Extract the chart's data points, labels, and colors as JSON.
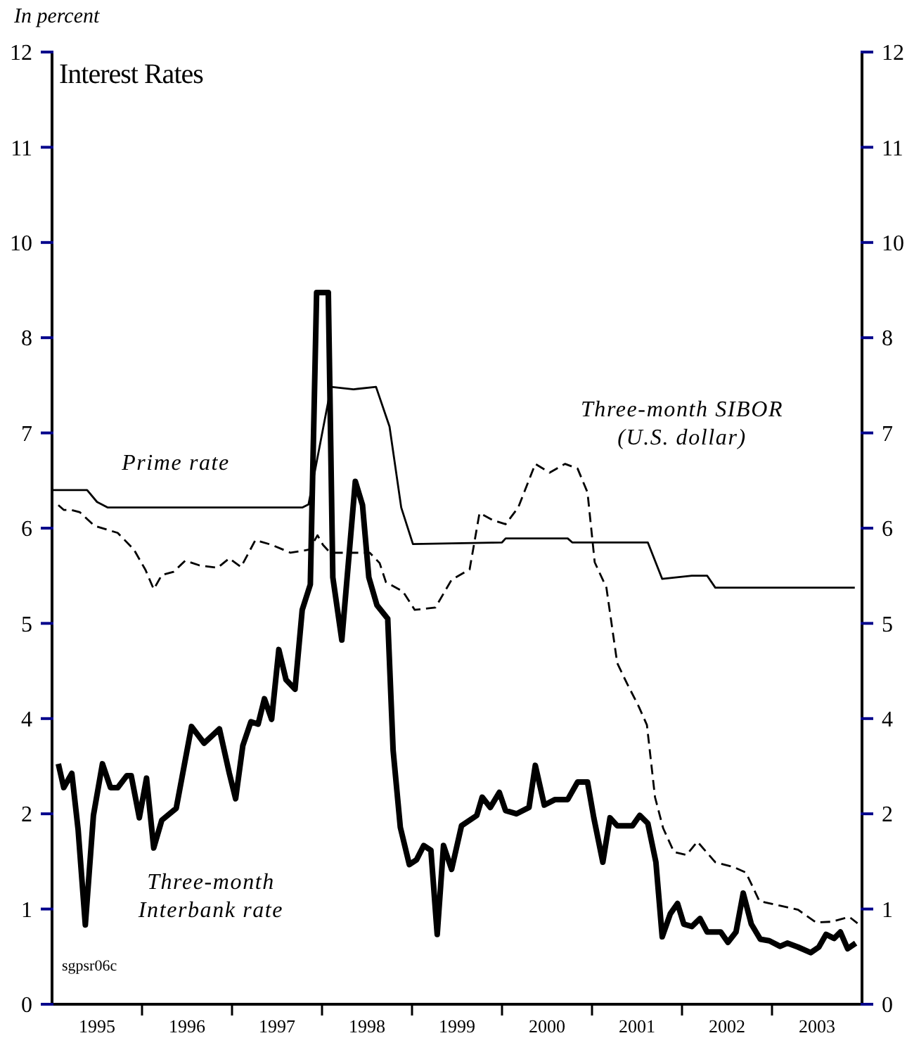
{
  "chart_data": {
    "type": "line",
    "title": "Interest Rates",
    "ylabel": "In percent",
    "annotations": [
      "sgpsr06c"
    ],
    "xlim": [
      1995,
      2004
    ],
    "xticks": [
      {
        "value": 1995.5,
        "label": "1995"
      },
      {
        "value": 1996,
        "label": null
      },
      {
        "value": 1996.5,
        "label": "1996"
      },
      {
        "value": 1997,
        "label": null
      },
      {
        "value": 1997.5,
        "label": "1997"
      },
      {
        "value": 1998,
        "label": null
      },
      {
        "value": 1998.5,
        "label": "1998"
      },
      {
        "value": 1999,
        "label": null
      },
      {
        "value": 1999.5,
        "label": "1999"
      },
      {
        "value": 2000,
        "label": null
      },
      {
        "value": 2000.5,
        "label": "2000"
      },
      {
        "value": 2001,
        "label": null
      },
      {
        "value": 2001.5,
        "label": "2001"
      },
      {
        "value": 2002,
        "label": null
      },
      {
        "value": 2002.5,
        "label": "2002"
      },
      {
        "value": 2003,
        "label": null
      },
      {
        "value": 2003.5,
        "label": "2003"
      }
    ],
    "ylim": [
      0,
      12
    ],
    "yticks": [
      0,
      {
        "value": 1.2,
        "label": "1"
      },
      {
        "value": 2.4,
        "label": "2"
      },
      {
        "value": 3.6,
        "label": "4"
      },
      {
        "value": 4.8,
        "label": "5"
      },
      6,
      {
        "value": 7.2,
        "label": "7"
      },
      {
        "value": 8.4,
        "label": "8"
      },
      {
        "value": 9.6,
        "label": "10"
      },
      {
        "value": 10.8,
        "label": "11"
      },
      12
    ],
    "y2lim": [
      0,
      12
    ],
    "y2ticks": [
      0,
      {
        "value": 1.2,
        "label": "1"
      },
      {
        "value": 2.4,
        "label": "2"
      },
      {
        "value": 3.6,
        "label": "4"
      },
      {
        "value": 4.8,
        "label": "5"
      },
      6,
      {
        "value": 7.2,
        "label": "7"
      },
      {
        "value": 8.4,
        "label": "8"
      },
      {
        "value": 9.6,
        "label": "10"
      },
      {
        "value": 10.8,
        "label": "11"
      },
      12
    ],
    "grid": false,
    "legend": false,
    "marker": "none",
    "series": [
      {
        "name": "Prime rate",
        "color": "#000000",
        "line_style": "solid",
        "x": [
          1995.0,
          1995.39,
          1995.5,
          1995.62,
          1997.78,
          1997.85,
          1998.1,
          1998.35,
          1998.6,
          1998.75,
          1998.88,
          1999.01,
          2000.0,
          2000.04,
          2000.73,
          2000.78,
          2001.62,
          2001.78,
          2002.11,
          2002.28,
          2002.37,
          2003.92
        ],
        "values": [
          6.48,
          6.48,
          6.33,
          6.26,
          6.26,
          6.3,
          7.78,
          7.75,
          7.78,
          7.28,
          6.26,
          5.8,
          5.82,
          5.87,
          5.87,
          5.82,
          5.82,
          5.36,
          5.4,
          5.4,
          5.25,
          5.25
        ]
      },
      {
        "name": "Three-month SIBOR\n(U.S. dollar)",
        "color": "#000000",
        "line_style": "dashed",
        "x": [
          1995.07,
          1995.13,
          1995.21,
          1995.31,
          1995.47,
          1995.73,
          1995.91,
          1996.04,
          1996.13,
          1996.22,
          1996.35,
          1996.48,
          1996.64,
          1996.84,
          1996.97,
          1997.1,
          1997.26,
          1997.44,
          1997.65,
          1997.86,
          1997.95,
          1998.01,
          1998.09,
          1998.53,
          1998.64,
          1998.71,
          1998.9,
          1999.03,
          1999.26,
          1999.44,
          1999.64,
          1999.75,
          1999.9,
          2000.04,
          2000.18,
          2000.37,
          2000.53,
          2000.7,
          2000.84,
          2000.95,
          2001.03,
          2001.16,
          2001.28,
          2001.39,
          2001.52,
          2001.61,
          2001.7,
          2001.79,
          2001.91,
          2002.05,
          2002.17,
          2002.37,
          2002.57,
          2002.71,
          2002.86,
          2003.1,
          2003.29,
          2003.49,
          2003.66,
          2003.86,
          2003.95
        ],
        "values": [
          6.29,
          6.23,
          6.23,
          6.2,
          6.03,
          5.94,
          5.73,
          5.47,
          5.23,
          5.41,
          5.45,
          5.59,
          5.53,
          5.5,
          5.62,
          5.51,
          5.85,
          5.79,
          5.69,
          5.73,
          5.91,
          5.79,
          5.69,
          5.69,
          5.56,
          5.32,
          5.2,
          4.97,
          5.0,
          5.35,
          5.48,
          6.19,
          6.1,
          6.05,
          6.26,
          6.81,
          6.7,
          6.81,
          6.75,
          6.45,
          5.57,
          5.25,
          4.3,
          4.04,
          3.75,
          3.52,
          2.61,
          2.22,
          1.92,
          1.88,
          2.05,
          1.79,
          1.73,
          1.66,
          1.3,
          1.24,
          1.19,
          1.03,
          1.04,
          1.1,
          1.02
        ]
      },
      {
        "name": "Three-month\nInterbank rate",
        "color": "#000000",
        "line_style": "solid",
        "x": [
          1995.07,
          1995.13,
          1995.22,
          1995.29,
          1995.37,
          1995.46,
          1995.56,
          1995.65,
          1995.73,
          1995.83,
          1995.88,
          1995.97,
          1996.05,
          1996.13,
          1996.22,
          1996.38,
          1996.55,
          1996.69,
          1996.86,
          1996.97,
          1997.04,
          1997.12,
          1997.21,
          1997.29,
          1997.36,
          1997.44,
          1997.52,
          1997.6,
          1997.7,
          1997.78,
          1997.87,
          1997.94,
          1998.07,
          1998.12,
          1998.22,
          1998.37,
          1998.45,
          1998.52,
          1998.61,
          1998.73,
          1998.79,
          1998.87,
          1998.97,
          1999.05,
          1999.13,
          1999.21,
          1999.28,
          1999.35,
          1999.44,
          1999.55,
          1999.72,
          1999.78,
          1999.87,
          1999.97,
          2000.04,
          2000.16,
          2000.3,
          2000.37,
          2000.47,
          2000.59,
          2000.73,
          2000.84,
          2000.95,
          2001.02,
          2001.12,
          2001.2,
          2001.28,
          2001.45,
          2001.53,
          2001.62,
          2001.71,
          2001.78,
          2001.87,
          2001.95,
          2002.02,
          2002.11,
          2002.2,
          2002.28,
          2002.43,
          2002.51,
          2002.6,
          2002.68,
          2002.77,
          2002.87,
          2002.97,
          2003.09,
          2003.17,
          2003.29,
          2003.43,
          2003.52,
          2003.6,
          2003.69,
          2003.76,
          2003.84,
          2003.93
        ],
        "values": [
          3.03,
          2.73,
          2.91,
          2.2,
          1.0,
          2.38,
          3.03,
          2.73,
          2.73,
          2.88,
          2.88,
          2.35,
          2.85,
          1.97,
          2.32,
          2.47,
          3.5,
          3.29,
          3.47,
          2.91,
          2.59,
          3.26,
          3.56,
          3.53,
          3.85,
          3.59,
          4.47,
          4.09,
          3.97,
          4.97,
          5.29,
          8.97,
          8.97,
          5.38,
          4.59,
          6.59,
          6.29,
          5.38,
          5.03,
          4.86,
          3.2,
          2.23,
          1.76,
          1.82,
          2.0,
          1.94,
          0.88,
          2.0,
          1.7,
          2.25,
          2.38,
          2.61,
          2.48,
          2.67,
          2.44,
          2.4,
          2.48,
          3.01,
          2.51,
          2.58,
          2.58,
          2.8,
          2.8,
          2.35,
          1.79,
          2.35,
          2.25,
          2.25,
          2.38,
          2.28,
          1.79,
          0.85,
          1.14,
          1.27,
          1.01,
          0.98,
          1.08,
          0.91,
          0.91,
          0.78,
          0.91,
          1.4,
          1.01,
          0.82,
          0.8,
          0.73,
          0.77,
          0.72,
          0.65,
          0.72,
          0.88,
          0.83,
          0.91,
          0.7,
          0.77
        ]
      }
    ]
  }
}
